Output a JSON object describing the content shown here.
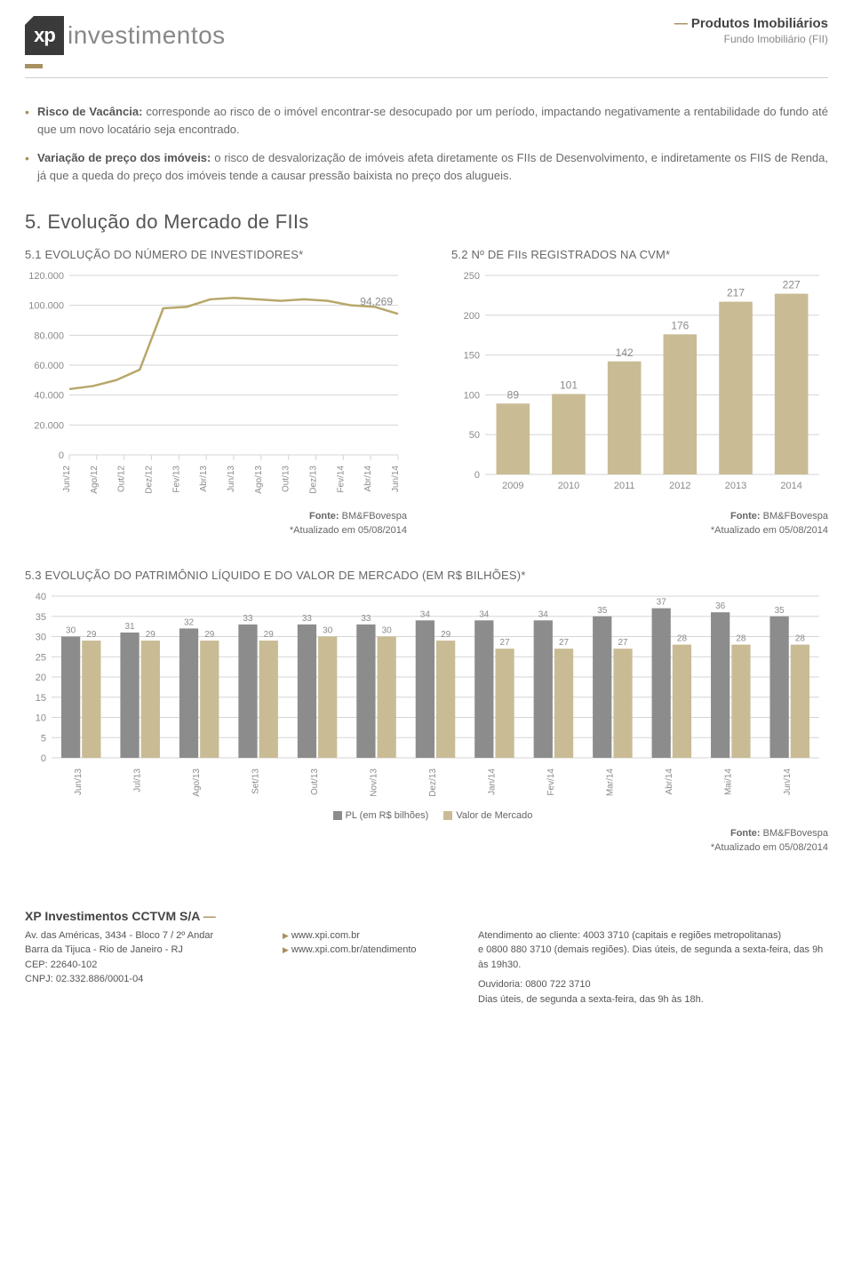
{
  "header": {
    "logo_text": "investimentos",
    "logo_xp": "xp",
    "product_line": "Produtos Imobiliários",
    "product_sub": "Fundo Imobiliário (FII)"
  },
  "bullets": [
    {
      "label": "Risco de Vacância:",
      "text": " corresponde ao risco de o imóvel encontrar-se desocupado por um período, impactando negativamente a rentabilidade do fundo até que um novo locatário seja encontrado."
    },
    {
      "label": "Variação de preço dos imóveis:",
      "text": " o risco de desvalorização de imóveis afeta diretamente os FIIs de Desenvolvimento, e indiretamente os FIIS de Renda, já que a queda do preço dos imóveis tende a causar pressão baixista no preço dos alugueis."
    }
  ],
  "section_title": "5. Evolução do Mercado de FIIs",
  "chart1": {
    "title": "5.1 EVOLUÇÃO DO NÚMERO DE INVESTIDORES*",
    "y_ticks": [
      "0",
      "20.000",
      "40.000",
      "60.000",
      "80.000",
      "100.000",
      "120.000"
    ],
    "ylim": [
      0,
      120000
    ],
    "x_labels": [
      "Jun/12",
      "Ago/12",
      "Out/12",
      "Dez/12",
      "Fev/13",
      "Abr/13",
      "Jun/13",
      "Ago/13",
      "Out/13",
      "Dez/13",
      "Fev/14",
      "Abr/14",
      "Jun/14"
    ],
    "values": [
      44000,
      46000,
      50000,
      57000,
      98000,
      99000,
      104000,
      105000,
      104000,
      103000,
      104000,
      103000,
      100000,
      99000,
      94269
    ],
    "annotation": "94.269",
    "line_color": "#b8a76a",
    "grid_color": "#d5d5d5",
    "text_color": "#8a8a8a"
  },
  "chart2": {
    "title": "5.2 Nº DE FIIs REGISTRADOS NA CVM*",
    "y_ticks": [
      "0",
      "50",
      "100",
      "150",
      "200",
      "250"
    ],
    "ylim": [
      0,
      250
    ],
    "categories": [
      "2009",
      "2010",
      "2011",
      "2012",
      "2013",
      "2014"
    ],
    "values": [
      89,
      101,
      142,
      176,
      217,
      227
    ],
    "bar_color": "#c9bb94",
    "grid_color": "#d5d5d5",
    "text_color": "#8a8a8a"
  },
  "fonte_label": "Fonte:",
  "fonte_text": " BM&FBovespa",
  "atualizado": "*Atualizado em 05/08/2014",
  "chart3": {
    "title": "5.3 EVOLUÇÃO DO PATRIMÔNIO LÍQUIDO E DO VALOR DE MERCADO (EM R$ BILHÕES)*",
    "y_ticks": [
      "0",
      "5",
      "10",
      "15",
      "20",
      "25",
      "30",
      "35",
      "40"
    ],
    "ylim": [
      0,
      40
    ],
    "categories": [
      "Jun/13",
      "Jul/13",
      "Ago/13",
      "Set/13",
      "Out/13",
      "Nov/13",
      "Dez/13",
      "Jan/14",
      "Fev/14",
      "Mar/14",
      "Abr/14",
      "Mai/14",
      "Jun/14"
    ],
    "series_a": [
      30,
      31,
      32,
      33,
      33,
      33,
      34,
      34,
      34,
      35,
      37,
      36,
      35
    ],
    "series_b": [
      29,
      29,
      29,
      29,
      30,
      30,
      29,
      27,
      27,
      27,
      28,
      28,
      28
    ],
    "color_a": "#8c8c8c",
    "color_b": "#c9bb94",
    "grid_color": "#d5d5d5",
    "text_color": "#8a8a8a",
    "legend_a": "PL (em R$ bilhões)",
    "legend_b": "Valor de Mercado"
  },
  "footer": {
    "company": "XP Investimentos CCTVM S/A",
    "addr1": "Av. das Américas, 3434 - Bloco 7 / 2º Andar",
    "addr2": "Barra da Tijuca - Rio de Janeiro - RJ",
    "addr3": "CEP: 22640-102",
    "addr4": "CNPJ: 02.332.886/0001-04",
    "link1": "www.xpi.com.br",
    "link2": "www.xpi.com.br/atendimento",
    "r1": "Atendimento ao cliente: 4003 3710 (capitais e regiões metropolitanas)",
    "r2": "e 0800 880 3710 (demais regiões). Dias úteis, de segunda a sexta-feira, das 9h às 19h30.",
    "r3": "Ouvidoria: 0800 722 3710",
    "r4": "Dias úteis, de segunda a sexta-feira, das 9h às 18h."
  }
}
